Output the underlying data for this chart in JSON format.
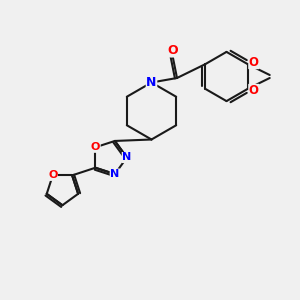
{
  "bg_color": "#f0f0f0",
  "bond_color": "#1a1a1a",
  "nitrogen_color": "#0000ff",
  "oxygen_color": "#ff0000",
  "lw": 1.5,
  "fig_size": [
    3.0,
    3.0
  ],
  "dpi": 100,
  "xlim": [
    0,
    10
  ],
  "ylim": [
    0,
    10
  ]
}
